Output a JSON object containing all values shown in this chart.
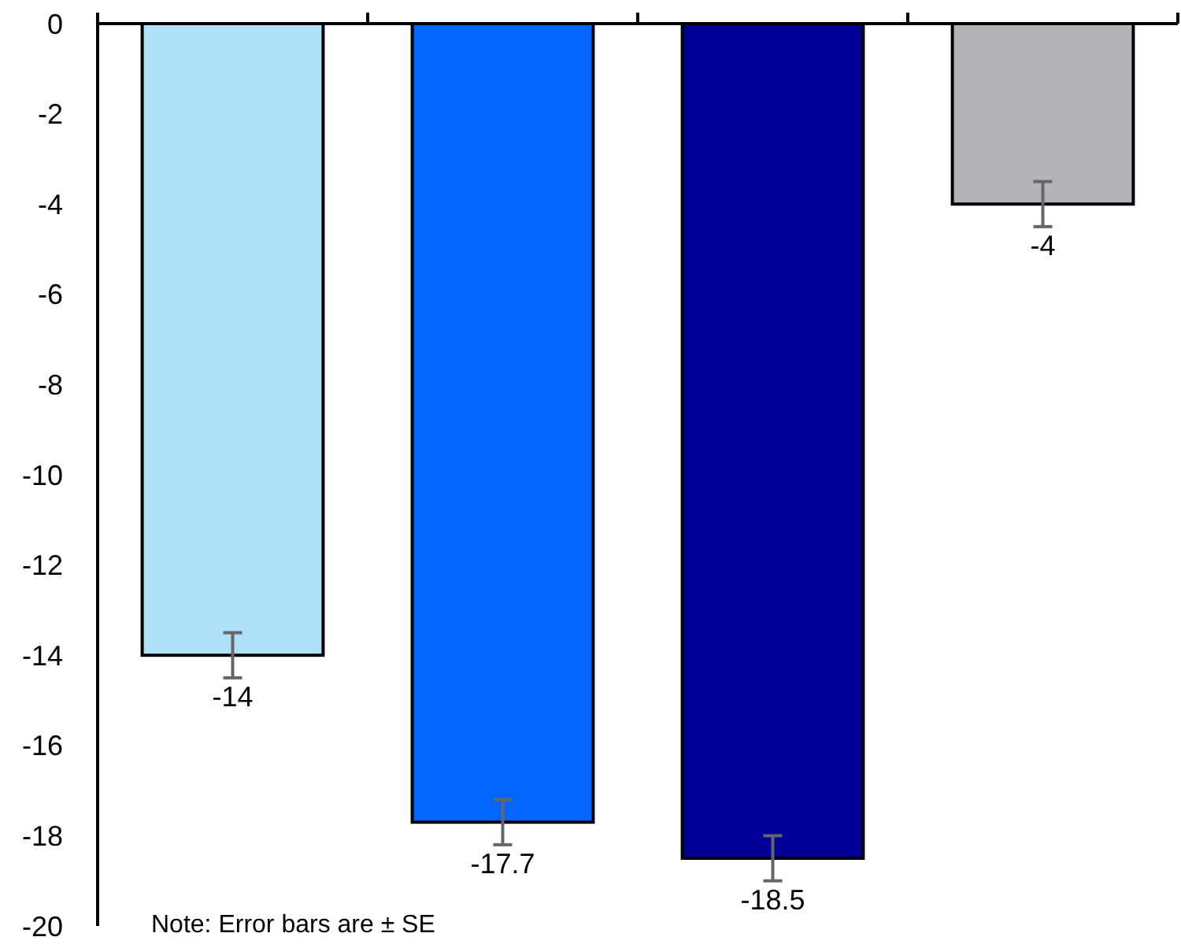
{
  "chart_data": {
    "type": "bar",
    "categories": [
      null,
      null,
      null,
      null
    ],
    "values": [
      -14,
      -17.7,
      -18.5,
      -4
    ],
    "colors": [
      "#aee0f8",
      "#0066ff",
      "#000099",
      "#b3b3b8"
    ],
    "errors": [
      0.5,
      0.5,
      0.5,
      0.5
    ],
    "ylim": [
      -20,
      0
    ],
    "yticks": [
      -20,
      -18,
      -16,
      -14,
      -12,
      -10,
      -8,
      -6,
      -4,
      -2,
      0
    ],
    "data_labels": true,
    "annotations": [
      "Note: Error bars are ± SE"
    ]
  }
}
